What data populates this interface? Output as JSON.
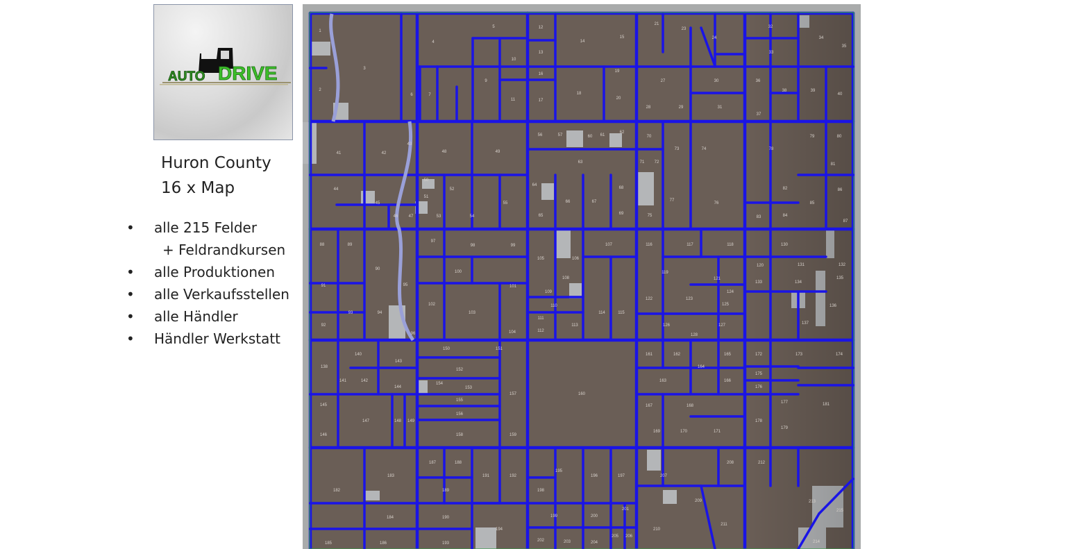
{
  "logo": {
    "text_auto": "AUTO",
    "text_drive": "DRIVE"
  },
  "title": {
    "line1": "Huron County",
    "line2": "16 x Map"
  },
  "bullets": [
    {
      "text": "alle 215 Felder",
      "bullet": "•"
    },
    {
      "text": "+ Feldrandkursen",
      "bullet": ""
    },
    {
      "text": "alle Produktionen",
      "bullet": "•"
    },
    {
      "text": "alle Verkaufsstellen",
      "bullet": "•"
    },
    {
      "text": "alle Händler",
      "bullet": "•"
    },
    {
      "text": "Händler  Werkstatt",
      "bullet": "•"
    }
  ],
  "map": {
    "colors": {
      "field": "#6a5e56",
      "road": "#1a14e6",
      "border": "#a9abab",
      "patch": "#b4b6b8",
      "edge_green": "#3aa04a"
    },
    "field_labels": [
      "1",
      "2",
      "3",
      "4",
      "5",
      "6",
      "7",
      "9",
      "10",
      "11",
      "12",
      "13",
      "14",
      "15",
      "16",
      "17",
      "18",
      "19",
      "20",
      "21",
      "23",
      "24",
      "27",
      "28",
      "29",
      "30",
      "31",
      "32",
      "33",
      "34",
      "35",
      "36",
      "37",
      "38",
      "39",
      "40",
      "41",
      "42",
      "43",
      "44",
      "45",
      "46",
      "47",
      "48",
      "49",
      "50",
      "51",
      "52",
      "53",
      "54",
      "55",
      "56",
      "57",
      "60",
      "61",
      "62",
      "63",
      "64",
      "65",
      "66",
      "67",
      "68",
      "69",
      "70",
      "71",
      "72",
      "73",
      "74",
      "75",
      "76",
      "77",
      "78",
      "79",
      "80",
      "81",
      "82",
      "83",
      "84",
      "85",
      "86",
      "87",
      "88",
      "89",
      "90",
      "91",
      "92",
      "93",
      "94",
      "95",
      "96",
      "97",
      "98",
      "99",
      "100",
      "101",
      "102",
      "103",
      "104",
      "105",
      "106",
      "107",
      "108",
      "109",
      "110",
      "111",
      "112",
      "113",
      "114",
      "115",
      "116",
      "117",
      "118",
      "119",
      "120",
      "121",
      "122",
      "123",
      "124",
      "125",
      "126",
      "127",
      "128",
      "130",
      "131",
      "132",
      "133",
      "134",
      "135",
      "136",
      "137",
      "138",
      "140",
      "141",
      "142",
      "143",
      "144",
      "145",
      "146",
      "147",
      "148",
      "149",
      "150",
      "151",
      "152",
      "153",
      "154",
      "155",
      "156",
      "157",
      "158",
      "159",
      "160",
      "161",
      "162",
      "163",
      "164",
      "165",
      "166",
      "167",
      "168",
      "169",
      "170",
      "171",
      "172",
      "173",
      "174",
      "175",
      "176",
      "177",
      "178",
      "179",
      "181",
      "182",
      "183",
      "184",
      "185",
      "186",
      "187",
      "188",
      "189",
      "190",
      "191",
      "192",
      "193",
      "194",
      "195",
      "196",
      "197",
      "198",
      "199",
      "200",
      "201",
      "202",
      "203",
      "204",
      "205",
      "206",
      "207",
      "208",
      "209",
      "210",
      "211",
      "212",
      "213",
      "214",
      "215"
    ]
  }
}
